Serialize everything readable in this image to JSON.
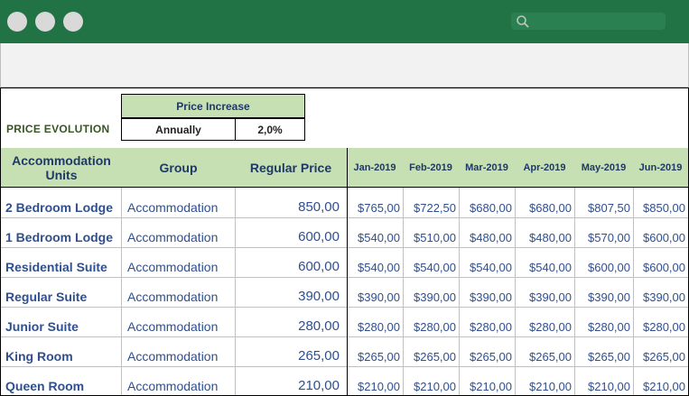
{
  "window": {
    "controls": [
      "window-control-1",
      "window-control-2",
      "window-control-3"
    ],
    "search_icon": "search-icon"
  },
  "summary": {
    "section_label": "PRICE EVOLUTION",
    "price_increase_header": "Price Increase",
    "frequency": "Annually",
    "rate": "2,0%"
  },
  "table": {
    "headers": {
      "unit": "Accommodation Units",
      "group": "Group",
      "regular_price": "Regular Price",
      "months": [
        "Jan-2019",
        "Feb-2019",
        "Mar-2019",
        "Apr-2019",
        "May-2019",
        "Jun-2019"
      ]
    },
    "rows": [
      {
        "unit": "2 Bedroom Lodge",
        "group": "Accommodation",
        "price": "850,00",
        "months": [
          "$765,00",
          "$722,50",
          "$680,00",
          "$680,00",
          "$807,50",
          "$850,00"
        ]
      },
      {
        "unit": "1 Bedroom Lodge",
        "group": "Accommodation",
        "price": "600,00",
        "months": [
          "$540,00",
          "$510,00",
          "$480,00",
          "$480,00",
          "$570,00",
          "$600,00"
        ]
      },
      {
        "unit": "Residential Suite",
        "group": "Accommodation",
        "price": "600,00",
        "months": [
          "$540,00",
          "$540,00",
          "$540,00",
          "$540,00",
          "$600,00",
          "$600,00"
        ]
      },
      {
        "unit": "Regular Suite",
        "group": "Accommodation",
        "price": "390,00",
        "months": [
          "$390,00",
          "$390,00",
          "$390,00",
          "$390,00",
          "$390,00",
          "$390,00"
        ]
      },
      {
        "unit": "Junior Suite",
        "group": "Accommodation",
        "price": "280,00",
        "months": [
          "$280,00",
          "$280,00",
          "$280,00",
          "$280,00",
          "$280,00",
          "$280,00"
        ]
      },
      {
        "unit": "King Room",
        "group": "Accommodation",
        "price": "265,00",
        "months": [
          "$265,00",
          "$265,00",
          "$265,00",
          "$265,00",
          "$265,00",
          "$265,00"
        ]
      },
      {
        "unit": "Queen Room",
        "group": "Accommodation",
        "price": "210,00",
        "months": [
          "$210,00",
          "$210,00",
          "$210,00",
          "$210,00",
          "$210,00",
          "$210,00"
        ]
      }
    ]
  },
  "colors": {
    "titlebar": "#217346",
    "header_fill": "#c6e0b4",
    "text_blue": "#2f4f8f",
    "label_green": "#375623"
  }
}
